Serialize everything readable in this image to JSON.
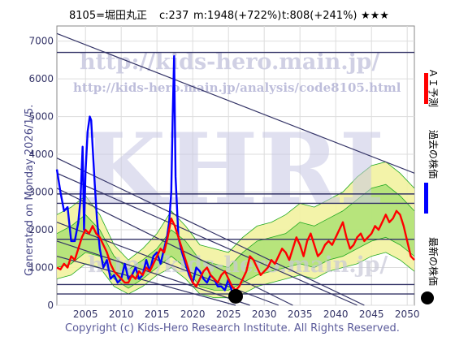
{
  "header": {
    "code": "8105=堀田丸正",
    "c_text": "c:237",
    "m_text": "m:1948(+722%)",
    "t_text": "t:808(+241%)",
    "stars": "★★★"
  },
  "side_label": "Generated on Monday 2026/1/5.",
  "legend": {
    "ai_forecast": "ＡＩ予測",
    "past_price": "過去の株価",
    "latest_price": "最新の株価"
  },
  "watermarks": {
    "url_top": "http://kids-hero.main.jp/",
    "url_analysis": "http://kids-hero.main.jp/analysis/code8105.html",
    "big": "KHRI",
    "url_bottom": "http://kids-hero.main.jp/"
  },
  "copyright": "Copyright (c) Kids-Hero Research Institute. All Rights Reserved.",
  "colors": {
    "past": "#0000ff",
    "forecast": "#ff0000",
    "band_yellow": "#f2f2a0",
    "band_green": "#a8e070",
    "line_green": "#22aa22",
    "trend": "#333366",
    "latest_dot": "#000000"
  },
  "chart_data": {
    "type": "line",
    "x_range": [
      2001,
      2051
    ],
    "y_range": [
      0,
      7400
    ],
    "x_ticks": [
      2005,
      2010,
      2015,
      2020,
      2025,
      2030,
      2035,
      2040,
      2045,
      2050
    ],
    "y_ticks": [
      0,
      1000,
      2000,
      3000,
      4000,
      5000,
      6000,
      7000
    ],
    "grid": true,
    "series": [
      {
        "name": "過去の株価",
        "color": "#0000ff",
        "points": [
          [
            2001,
            3600
          ],
          [
            2001.5,
            3000
          ],
          [
            2002,
            2500
          ],
          [
            2002.5,
            2600
          ],
          [
            2003,
            1700
          ],
          [
            2003.5,
            1700
          ],
          [
            2004,
            2200
          ],
          [
            2004.3,
            2800
          ],
          [
            2004.6,
            4200
          ],
          [
            2004.8,
            2000
          ],
          [
            2005,
            3500
          ],
          [
            2005.3,
            4600
          ],
          [
            2005.6,
            5000
          ],
          [
            2005.8,
            4900
          ],
          [
            2006,
            4200
          ],
          [
            2006.3,
            3200
          ],
          [
            2006.6,
            2300
          ],
          [
            2007,
            1500
          ],
          [
            2007.5,
            1000
          ],
          [
            2008,
            1200
          ],
          [
            2008.5,
            700
          ],
          [
            2009,
            800
          ],
          [
            2009.5,
            600
          ],
          [
            2010,
            700
          ],
          [
            2010.5,
            1100
          ],
          [
            2011,
            700
          ],
          [
            2011.5,
            800
          ],
          [
            2012,
            1000
          ],
          [
            2012.5,
            700
          ],
          [
            2013,
            800
          ],
          [
            2013.5,
            1200
          ],
          [
            2014,
            900
          ],
          [
            2014.5,
            1300
          ],
          [
            2015,
            1400
          ],
          [
            2015.5,
            1100
          ],
          [
            2016,
            1500
          ],
          [
            2016.4,
            1800
          ],
          [
            2016.7,
            2200
          ],
          [
            2017,
            3000
          ],
          [
            2017.2,
            5000
          ],
          [
            2017.4,
            6600
          ],
          [
            2017.6,
            3400
          ],
          [
            2017.8,
            2600
          ],
          [
            2018,
            1800
          ],
          [
            2018.5,
            1400
          ],
          [
            2019,
            1100
          ],
          [
            2019.5,
            800
          ],
          [
            2020,
            600
          ],
          [
            2020.5,
            1000
          ],
          [
            2021,
            900
          ],
          [
            2021.5,
            700
          ],
          [
            2022,
            600
          ],
          [
            2022.5,
            800
          ],
          [
            2023,
            700
          ],
          [
            2023.5,
            500
          ],
          [
            2024,
            500
          ],
          [
            2024.5,
            400
          ],
          [
            2025,
            700
          ],
          [
            2025.5,
            350
          ],
          [
            2026,
            240
          ]
        ]
      },
      {
        "name": "ＡＩ予測",
        "color": "#ff0000",
        "points": [
          [
            2001,
            1000
          ],
          [
            2001.5,
            950
          ],
          [
            2002,
            1100
          ],
          [
            2002.5,
            1000
          ],
          [
            2003,
            1300
          ],
          [
            2003.5,
            1200
          ],
          [
            2004,
            1500
          ],
          [
            2004.5,
            1800
          ],
          [
            2005,
            2000
          ],
          [
            2005.5,
            1900
          ],
          [
            2006,
            2100
          ],
          [
            2006.5,
            1900
          ],
          [
            2007,
            1800
          ],
          [
            2007.5,
            1600
          ],
          [
            2008,
            1400
          ],
          [
            2008.5,
            1100
          ],
          [
            2009,
            900
          ],
          [
            2009.5,
            800
          ],
          [
            2010,
            700
          ],
          [
            2010.5,
            600
          ],
          [
            2011,
            600
          ],
          [
            2011.5,
            800
          ],
          [
            2012,
            700
          ],
          [
            2012.5,
            900
          ],
          [
            2013,
            800
          ],
          [
            2013.5,
            1000
          ],
          [
            2014,
            900
          ],
          [
            2014.5,
            1100
          ],
          [
            2015,
            1300
          ],
          [
            2015.5,
            1500
          ],
          [
            2016,
            1400
          ],
          [
            2016.5,
            1800
          ],
          [
            2017,
            2300
          ],
          [
            2017.5,
            2100
          ],
          [
            2018,
            1800
          ],
          [
            2018.5,
            1500
          ],
          [
            2019,
            1200
          ],
          [
            2019.5,
            900
          ],
          [
            2020,
            600
          ],
          [
            2020.5,
            500
          ],
          [
            2021,
            700
          ],
          [
            2021.5,
            900
          ],
          [
            2022,
            1000
          ],
          [
            2022.5,
            800
          ],
          [
            2023,
            700
          ],
          [
            2023.5,
            600
          ],
          [
            2024,
            800
          ],
          [
            2024.5,
            900
          ],
          [
            2025,
            700
          ],
          [
            2025.5,
            500
          ],
          [
            2026,
            400
          ],
          [
            2026.5,
            500
          ],
          [
            2027,
            700
          ],
          [
            2027.5,
            900
          ],
          [
            2028,
            1300
          ],
          [
            2028.5,
            1200
          ],
          [
            2029,
            1000
          ],
          [
            2029.5,
            800
          ],
          [
            2030,
            900
          ],
          [
            2030.5,
            1000
          ],
          [
            2031,
            1200
          ],
          [
            2031.5,
            1100
          ],
          [
            2032,
            1300
          ],
          [
            2032.5,
            1500
          ],
          [
            2033,
            1400
          ],
          [
            2033.5,
            1200
          ],
          [
            2034,
            1500
          ],
          [
            2034.5,
            1800
          ],
          [
            2035,
            1600
          ],
          [
            2035.5,
            1300
          ],
          [
            2036,
            1700
          ],
          [
            2036.5,
            1900
          ],
          [
            2037,
            1600
          ],
          [
            2037.5,
            1300
          ],
          [
            2038,
            1400
          ],
          [
            2038.5,
            1600
          ],
          [
            2039,
            1700
          ],
          [
            2039.5,
            1600
          ],
          [
            2040,
            1800
          ],
          [
            2040.5,
            2000
          ],
          [
            2041,
            2200
          ],
          [
            2041.5,
            1800
          ],
          [
            2042,
            1500
          ],
          [
            2042.5,
            1600
          ],
          [
            2043,
            1800
          ],
          [
            2043.5,
            1900
          ],
          [
            2044,
            1700
          ],
          [
            2044.5,
            1800
          ],
          [
            2045,
            1900
          ],
          [
            2045.5,
            2100
          ],
          [
            2046,
            2000
          ],
          [
            2046.5,
            2200
          ],
          [
            2047,
            2400
          ],
          [
            2047.5,
            2200
          ],
          [
            2048,
            2300
          ],
          [
            2048.5,
            2500
          ],
          [
            2049,
            2400
          ],
          [
            2049.5,
            2100
          ],
          [
            2050,
            1700
          ],
          [
            2050.5,
            1300
          ],
          [
            2051,
            1200
          ]
        ]
      }
    ],
    "bands": {
      "upper_outer": [
        [
          2001,
          2400
        ],
        [
          2003,
          2600
        ],
        [
          2005,
          2900
        ],
        [
          2007,
          2400
        ],
        [
          2009,
          1600
        ],
        [
          2011,
          1200
        ],
        [
          2013,
          1500
        ],
        [
          2015,
          1900
        ],
        [
          2017,
          2500
        ],
        [
          2019,
          2100
        ],
        [
          2021,
          1600
        ],
        [
          2023,
          1500
        ],
        [
          2025,
          1400
        ],
        [
          2027,
          1800
        ],
        [
          2029,
          2100
        ],
        [
          2031,
          2200
        ],
        [
          2033,
          2400
        ],
        [
          2035,
          2700
        ],
        [
          2037,
          2600
        ],
        [
          2039,
          2800
        ],
        [
          2041,
          3000
        ],
        [
          2043,
          3400
        ],
        [
          2045,
          3700
        ],
        [
          2047,
          3800
        ],
        [
          2049,
          3500
        ],
        [
          2051,
          3100
        ]
      ],
      "lower_outer": [
        [
          2001,
          700
        ],
        [
          2003,
          800
        ],
        [
          2005,
          1100
        ],
        [
          2007,
          1000
        ],
        [
          2009,
          500
        ],
        [
          2011,
          300
        ],
        [
          2013,
          500
        ],
        [
          2015,
          800
        ],
        [
          2017,
          1000
        ],
        [
          2019,
          700
        ],
        [
          2021,
          300
        ],
        [
          2023,
          200
        ],
        [
          2025,
          200
        ],
        [
          2027,
          300
        ],
        [
          2029,
          500
        ],
        [
          2031,
          600
        ],
        [
          2033,
          700
        ],
        [
          2035,
          800
        ],
        [
          2037,
          700
        ],
        [
          2039,
          900
        ],
        [
          2041,
          1000
        ],
        [
          2043,
          1100
        ],
        [
          2045,
          1300
        ],
        [
          2047,
          1400
        ],
        [
          2049,
          1200
        ],
        [
          2051,
          900
        ]
      ],
      "upper_inner": [
        [
          2001,
          1900
        ],
        [
          2003,
          2100
        ],
        [
          2005,
          2400
        ],
        [
          2007,
          2000
        ],
        [
          2009,
          1300
        ],
        [
          2011,
          950
        ],
        [
          2013,
          1200
        ],
        [
          2015,
          1500
        ],
        [
          2017,
          2000
        ],
        [
          2019,
          1700
        ],
        [
          2021,
          1200
        ],
        [
          2023,
          1100
        ],
        [
          2025,
          1000
        ],
        [
          2027,
          1400
        ],
        [
          2029,
          1700
        ],
        [
          2031,
          1800
        ],
        [
          2033,
          1900
        ],
        [
          2035,
          2200
        ],
        [
          2037,
          2100
        ],
        [
          2039,
          2300
        ],
        [
          2041,
          2500
        ],
        [
          2043,
          2800
        ],
        [
          2045,
          3100
        ],
        [
          2047,
          3200
        ],
        [
          2049,
          2900
        ],
        [
          2051,
          2500
        ]
      ],
      "lower_inner": [
        [
          2001,
          1000
        ],
        [
          2003,
          1100
        ],
        [
          2005,
          1400
        ],
        [
          2007,
          1300
        ],
        [
          2009,
          700
        ],
        [
          2011,
          450
        ],
        [
          2013,
          700
        ],
        [
          2015,
          1000
        ],
        [
          2017,
          1300
        ],
        [
          2019,
          1000
        ],
        [
          2021,
          500
        ],
        [
          2023,
          400
        ],
        [
          2025,
          400
        ],
        [
          2027,
          600
        ],
        [
          2029,
          800
        ],
        [
          2031,
          900
        ],
        [
          2033,
          1000
        ],
        [
          2035,
          1100
        ],
        [
          2037,
          1000
        ],
        [
          2039,
          1200
        ],
        [
          2041,
          1300
        ],
        [
          2043,
          1500
        ],
        [
          2045,
          1700
        ],
        [
          2047,
          1800
        ],
        [
          2049,
          1600
        ],
        [
          2051,
          1300
        ]
      ]
    },
    "horizontal_levels": [
      6700,
      2950,
      2700,
      1750,
      550,
      300
    ],
    "trend_lines": [
      [
        [
          2001,
          7200
        ],
        [
          2051,
          3500
        ]
      ],
      [
        [
          2001,
          3900
        ],
        [
          2044,
          0
        ]
      ],
      [
        [
          2001,
          3500
        ],
        [
          2043,
          0
        ]
      ],
      [
        [
          2001,
          3100
        ],
        [
          2034,
          0
        ]
      ],
      [
        [
          2001,
          2200
        ],
        [
          2032,
          0
        ]
      ],
      [
        [
          2001,
          1700
        ],
        [
          2028,
          0
        ]
      ],
      [
        [
          2001,
          1300
        ],
        [
          2026,
          0
        ]
      ]
    ],
    "latest_point": {
      "x": 2026,
      "y": 237
    }
  }
}
